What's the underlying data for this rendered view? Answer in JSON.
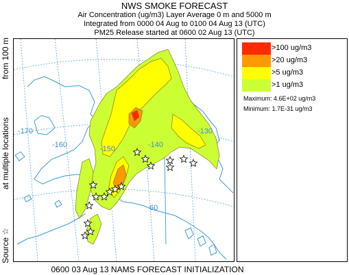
{
  "header": {
    "title": "NWS SMOKE FORECAST",
    "line1": "Air Concentration (ug/m3) Layer Average    0 m and  5000 m",
    "line2": "Integrated from 0000 04 Aug to 0100 04 Aug 13 (UTC)",
    "line3": "PM25 Release started at 0600 02 Aug 13 (UTC)"
  },
  "side_label": {
    "source": "Source ☆",
    "middle": "at multiple locations",
    "top": "from   100 m"
  },
  "map": {
    "lon_labels": [
      "-170",
      "-160",
      "-150",
      "-140",
      "-130"
    ],
    "lat_labels": [
      "60"
    ]
  },
  "legend": {
    "items": [
      {
        "label": ">100 ug/m3",
        "color": "#ff2a00"
      },
      {
        "label": ">20 ug/m3",
        "color": "#ff9900"
      },
      {
        "label": ">5 ug/m3",
        "color": "#ffff00"
      },
      {
        "label": ">1 ug/m3",
        "color": "#ccff33"
      }
    ],
    "maximum": "Maximum: 4.6E+02 ug/m3",
    "minimum": "Minimum: 1.7E-31 ug/m3"
  },
  "footer": "0600 03 Aug 13 NAMS FORECAST INITIALIZATION"
}
